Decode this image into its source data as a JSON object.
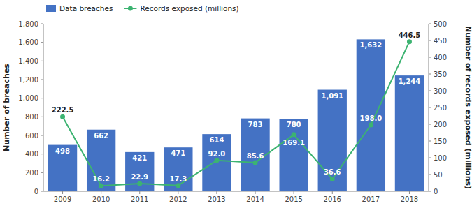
{
  "chart_data": {
    "type": "bar",
    "categories": [
      "2009",
      "2010",
      "2011",
      "2012",
      "2013",
      "2014",
      "2015",
      "2016",
      "2017",
      "2018"
    ],
    "series": [
      {
        "name": "Data breaches",
        "type": "bar",
        "color": "#4472C4",
        "values": [
          498,
          662,
          421,
          471,
          614,
          783,
          780,
          1091,
          1632,
          1244
        ],
        "value_labels": [
          "498",
          "662",
          "421",
          "471",
          "614",
          "783",
          "780",
          "1,091",
          "1,632",
          "1,244"
        ]
      },
      {
        "name": "Records exposed (millions)",
        "type": "line",
        "axis": "y2",
        "color": "#3CB371",
        "marker": "circle",
        "values": [
          222.5,
          16.2,
          22.9,
          17.3,
          92.0,
          85.6,
          169.1,
          36.6,
          198.0,
          446.5
        ],
        "value_labels": [
          "222.5",
          "16.2",
          "22.9",
          "17.3",
          "92.0",
          "85.6",
          "169.1",
          "36.6",
          "198.0",
          "446.5"
        ]
      }
    ],
    "ylabel": "Number of breaches",
    "y2label": "Number of records exposed (millions)",
    "ylim": [
      0,
      1800
    ],
    "yticks": [
      0,
      200,
      400,
      600,
      800,
      {
        "value": 1000,
        "label": "1,000"
      },
      {
        "value": 1200,
        "label": "1,200"
      },
      {
        "value": 1400,
        "label": "1,400"
      },
      {
        "value": 1600,
        "label": "1,600"
      },
      {
        "value": 1800,
        "label": "1,800"
      }
    ],
    "y2lim": [
      0,
      500
    ],
    "y2ticks": [
      0,
      50,
      100,
      150,
      200,
      250,
      300,
      350,
      400,
      450,
      500
    ],
    "data_labels": true,
    "legend": "upper left",
    "grid": false
  }
}
